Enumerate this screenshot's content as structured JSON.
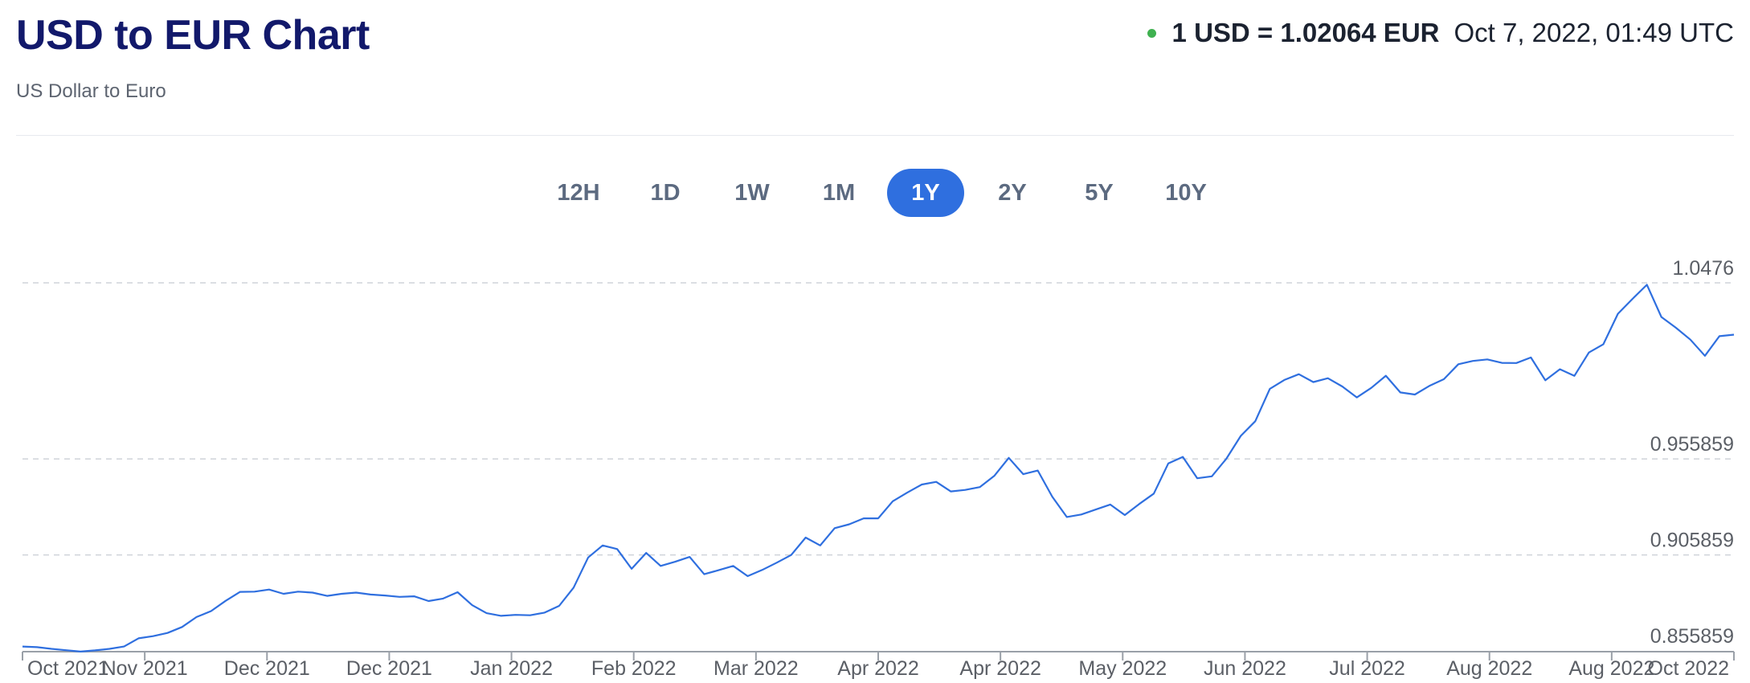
{
  "header": {
    "title": "USD to EUR Chart",
    "subtitle": "US Dollar to Euro",
    "rate": "1 USD = 1.02064 EUR",
    "timestamp": "Oct 7, 2022, 01:49 UTC",
    "status_color": "#3fb150"
  },
  "range_tabs": [
    "12H",
    "1D",
    "1W",
    "1M",
    "1Y",
    "2Y",
    "5Y",
    "10Y"
  ],
  "active_range": "1Y",
  "colors": {
    "line": "#2f6fdf",
    "accent": "#2f6fdf",
    "title": "#12196b"
  },
  "chart_data": {
    "type": "line",
    "title": "USD to EUR Chart",
    "x_labels": [
      "Oct 2021",
      "Nov 2021",
      "Dec 2021",
      "Dec 2021",
      "Jan 2022",
      "Feb 2022",
      "Mar 2022",
      "Apr 2022",
      "Apr 2022",
      "May 2022",
      "Jun 2022",
      "Jul 2022",
      "Aug 2022",
      "Aug 2022",
      "Oct 2022"
    ],
    "y_ticks": [
      1.0476,
      0.955859,
      0.905859,
      0.855859
    ],
    "y_tick_labels": [
      "1.0476",
      "0.955859",
      "0.905859",
      "0.855859"
    ],
    "ylim": [
      0.855859,
      1.0476
    ],
    "grid": "horizontal dashed",
    "series": [
      {
        "values": [
          0.8581,
          0.8578,
          0.8569,
          0.8562,
          0.8555,
          0.8561,
          0.8569,
          0.8581,
          0.8624,
          0.8635,
          0.8652,
          0.8683,
          0.8735,
          0.8766,
          0.8819,
          0.8866,
          0.8867,
          0.8878,
          0.8856,
          0.8867,
          0.8862,
          0.8845,
          0.8856,
          0.8862,
          0.8852,
          0.8847,
          0.884,
          0.8843,
          0.8818,
          0.8831,
          0.8864,
          0.8797,
          0.8755,
          0.8741,
          0.8746,
          0.8744,
          0.8758,
          0.8793,
          0.8888,
          0.9045,
          0.9108,
          0.9089,
          0.8986,
          0.9069,
          0.9001,
          0.9023,
          0.9048,
          0.8958,
          0.8979,
          0.9001,
          0.8948,
          0.898,
          0.9018,
          0.9058,
          0.9149,
          0.9108,
          0.9198,
          0.9218,
          0.9249,
          0.9249,
          0.9338,
          0.9383,
          0.9425,
          0.9439,
          0.9389,
          0.9397,
          0.9412,
          0.947,
          0.9564,
          0.9479,
          0.9498,
          0.9362,
          0.9256,
          0.9269,
          0.9295,
          0.9321,
          0.9266,
          0.9324,
          0.9378,
          0.9535,
          0.9569,
          0.9458,
          0.9468,
          0.9559,
          0.9679,
          0.9755,
          0.9924,
          0.997,
          1.0,
          0.9959,
          0.9979,
          0.9936,
          0.9879,
          0.9929,
          0.9992,
          0.9905,
          0.9894,
          0.9939,
          0.9974,
          1.0052,
          1.0069,
          1.0077,
          1.0059,
          1.0058,
          1.0087,
          0.9968,
          1.0026,
          0.9991,
          1.0113,
          1.0156,
          1.0315,
          1.0392,
          1.0466,
          1.0298,
          1.0242,
          1.018,
          1.0096,
          1.0198,
          1.0206
        ]
      }
    ]
  }
}
